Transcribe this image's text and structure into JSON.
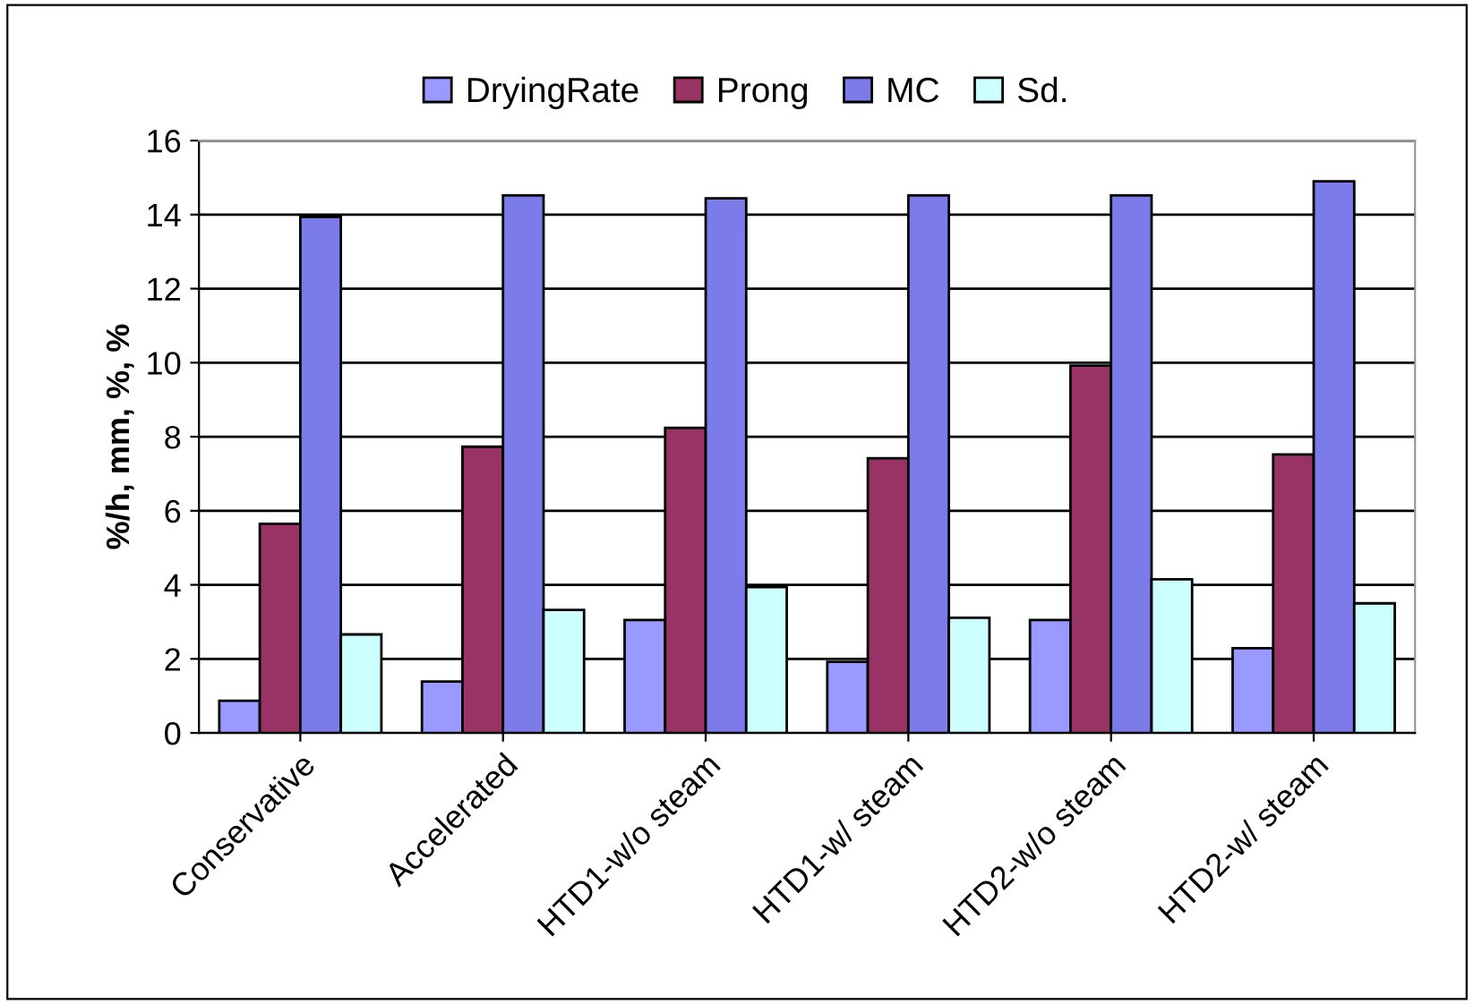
{
  "chart_data": {
    "type": "bar",
    "ylabel": "%/h, mm, %, %",
    "categories": [
      "Conservative",
      "Accelerated",
      "HTD1-w/o steam",
      "HTD1-w/ steam",
      "HTD2-w/o steam",
      "HTD2-w/ steam"
    ],
    "series": [
      {
        "name": "DryingRate",
        "color": "#9999ff",
        "values": [
          0.87,
          1.39,
          3.05,
          1.92,
          3.05,
          2.29
        ]
      },
      {
        "name": "Prong",
        "color": "#993366",
        "values": [
          5.65,
          7.73,
          8.24,
          7.42,
          9.92,
          7.52
        ]
      },
      {
        "name": "MC",
        "color": "#7b7bea",
        "values": [
          13.94,
          14.52,
          14.44,
          14.52,
          14.52,
          14.9
        ]
      },
      {
        "name": "Sd.",
        "color": "#ccffff",
        "values": [
          2.66,
          3.32,
          3.94,
          3.11,
          4.15,
          3.5
        ]
      }
    ],
    "ylim": [
      0,
      16
    ],
    "yticks": [
      0,
      2,
      4,
      6,
      8,
      10,
      12,
      14,
      16
    ],
    "grid": "y",
    "legend": "top"
  }
}
